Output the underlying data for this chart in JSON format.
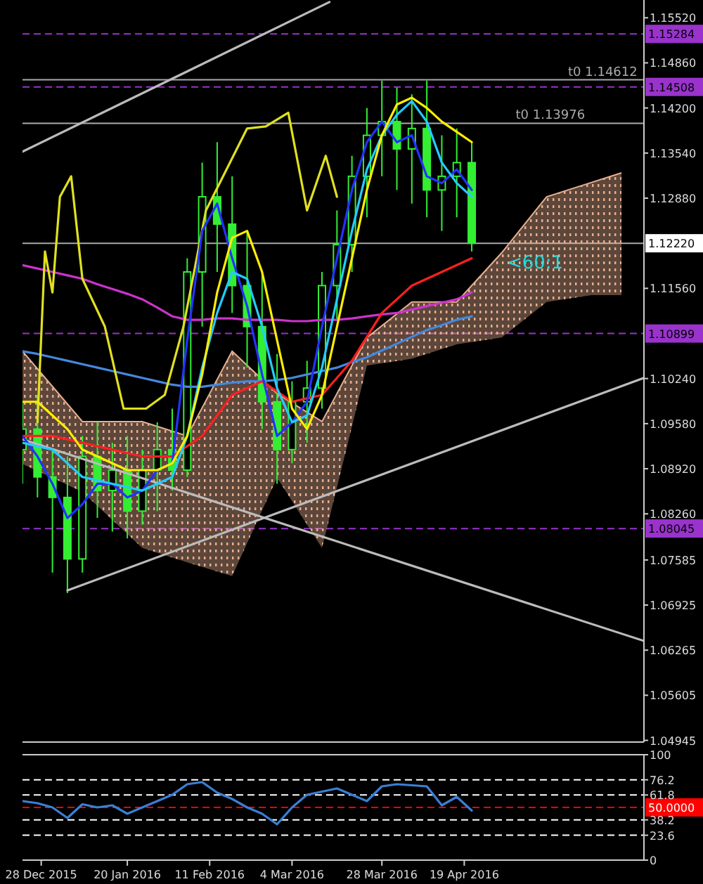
{
  "chart_data": [
    {
      "type": "candlestick",
      "tick_labels": "y",
      "xlim": [
        "2015-12-23",
        "2016-06-06"
      ],
      "ylim": [
        1.0492,
        1.1578
      ],
      "yticks": [
        {
          "value": 1.1552,
          "label": "1.15520"
        },
        {
          "value": 1.1486,
          "label": "1.14860"
        },
        {
          "value": 1.142,
          "label": "1.14200"
        },
        {
          "value": 1.1354,
          "label": "1.13540"
        },
        {
          "value": 1.1288,
          "label": "1.12880"
        },
        {
          "value": 1.1156,
          "label": "1.11560"
        },
        {
          "value": 1.1024,
          "label": "1.10240"
        },
        {
          "value": 1.0958,
          "label": "1.09580"
        },
        {
          "value": 1.0892,
          "label": "1.08920"
        },
        {
          "value": 1.0826,
          "label": "1.08260"
        },
        1.07585,
        1.06925,
        1.06265,
        1.05605,
        1.04945
      ],
      "x": [
        "2015-12-23",
        "2015-12-27",
        "2015-12-31",
        "2016-01-04",
        "2016-01-08",
        "2016-01-12",
        "2016-01-16",
        "2016-01-20",
        "2016-01-24",
        "2016-01-28",
        "2016-02-01",
        "2016-02-05",
        "2016-02-09",
        "2016-02-13",
        "2016-02-17",
        "2016-02-21",
        "2016-02-25",
        "2016-02-29",
        "2016-03-04",
        "2016-03-08",
        "2016-03-12",
        "2016-03-16",
        "2016-03-20",
        "2016-03-24",
        "2016-03-28",
        "2016-04-01",
        "2016-04-05",
        "2016-04-09",
        "2016-04-13",
        "2016-04-17",
        "2016-04-21"
      ],
      "color": "#33ee33",
      "ohlc": [
        [
          1.092,
          1.099,
          1.087,
          1.095
        ],
        [
          1.095,
          1.1,
          1.085,
          1.088
        ],
        [
          1.088,
          1.092,
          1.074,
          1.085
        ],
        [
          1.085,
          1.091,
          1.071,
          1.076
        ],
        [
          1.076,
          1.094,
          1.074,
          1.091
        ],
        [
          1.091,
          1.096,
          1.082,
          1.086
        ],
        [
          1.086,
          1.093,
          1.08,
          1.089
        ],
        [
          1.089,
          1.094,
          1.079,
          1.083
        ],
        [
          1.083,
          1.092,
          1.081,
          1.089
        ],
        [
          1.089,
          1.096,
          1.083,
          1.092
        ],
        [
          1.092,
          1.098,
          1.086,
          1.089
        ],
        [
          1.089,
          1.12,
          1.088,
          1.118
        ],
        [
          1.118,
          1.134,
          1.11,
          1.129
        ],
        [
          1.129,
          1.137,
          1.118,
          1.125
        ],
        [
          1.125,
          1.132,
          1.112,
          1.116
        ],
        [
          1.116,
          1.124,
          1.104,
          1.11
        ],
        [
          1.11,
          1.118,
          1.095,
          1.099
        ],
        [
          1.099,
          1.106,
          1.087,
          1.092
        ],
        [
          1.092,
          1.102,
          1.09,
          1.099
        ],
        [
          1.099,
          1.105,
          1.093,
          1.101
        ],
        [
          1.101,
          1.118,
          1.098,
          1.116
        ],
        [
          1.116,
          1.127,
          1.111,
          1.122
        ],
        [
          1.122,
          1.135,
          1.118,
          1.132
        ],
        [
          1.132,
          1.142,
          1.126,
          1.138
        ],
        [
          1.138,
          1.146,
          1.132,
          1.14
        ],
        [
          1.14,
          1.145,
          1.13,
          1.136
        ],
        [
          1.136,
          1.144,
          1.128,
          1.139
        ],
        [
          1.139,
          1.146,
          1.126,
          1.13
        ],
        [
          1.13,
          1.138,
          1.124,
          1.132
        ],
        [
          1.132,
          1.139,
          1.126,
          1.134
        ],
        [
          1.134,
          1.137,
          1.121,
          1.1222
        ]
      ],
      "series": [
        {
          "type": "line",
          "color": "#e8b090",
          "x": [
            "2015-12-23",
            "2016-01-08",
            "2016-01-24",
            "2016-02-05",
            "2016-02-17",
            "2016-02-29",
            "2016-03-12",
            "2016-03-24",
            "2016-04-05",
            "2016-04-17",
            "2016-04-29",
            "2016-05-11",
            "2016-05-23",
            "2016-05-31"
          ],
          "values": [
            1.1064,
            1.0961,
            1.0961,
            1.094,
            1.1064,
            1.1002,
            1.0961,
            1.1084,
            1.1136,
            1.1136,
            1.1208,
            1.129,
            1.1311,
            1.1325
          ],
          "upper": [
            1.1064,
            1.0961,
            1.0961,
            1.094,
            1.1064,
            1.1002,
            1.0961,
            1.1084,
            1.1136,
            1.1136,
            1.1208,
            1.129,
            1.1311,
            1.1325
          ],
          "lower": [
            1.0899,
            1.0858,
            1.0776,
            1.0755,
            1.0735,
            1.0879,
            1.0776,
            1.1043,
            1.1053,
            1.1074,
            1.1084,
            1.1136,
            1.1146,
            1.1146
          ]
        },
        {
          "type": "line",
          "color": "#bbbbbb",
          "x": [
            "2015-12-23",
            "2016-03-14"
          ],
          "values": [
            1.1356,
            1.1575
          ]
        },
        {
          "type": "line",
          "color": "#bbbbbb",
          "x": [
            "2015-12-23",
            "2016-06-06"
          ],
          "values": [
            1.0935,
            1.064
          ]
        },
        {
          "type": "line",
          "color": "#bbbbbb",
          "x": [
            "2016-01-04",
            "2016-06-06"
          ],
          "values": [
            1.0714,
            1.1025
          ]
        },
        {
          "type": "line",
          "color": "#cc33cc",
          "values": [
            1.119,
            1.1185,
            1.118,
            1.1175,
            1.117,
            1.1162,
            1.1155,
            1.1148,
            1.114,
            1.1128,
            1.1115,
            1.111,
            1.111,
            1.1112,
            1.1112,
            1.111,
            1.111,
            1.111,
            1.1108,
            1.1108,
            1.111,
            1.111,
            1.1112,
            1.1115,
            1.1118,
            1.112,
            1.1125,
            1.113,
            1.1135,
            1.114,
            1.115
          ]
        },
        {
          "type": "line",
          "color": "#4488dd",
          "values": [
            1.1064,
            1.106,
            1.1055,
            1.105,
            1.1045,
            1.104,
            1.1035,
            1.103,
            1.1025,
            1.102,
            1.1015,
            1.1012,
            1.1012,
            1.1015,
            1.1018,
            1.102,
            1.102,
            1.1022,
            1.1025,
            1.103,
            1.1035,
            1.104,
            1.1048,
            1.1055,
            1.1065,
            1.1075,
            1.1085,
            1.1095,
            1.1102,
            1.111,
            1.1115
          ]
        },
        {
          "type": "line",
          "color": "#e0e020",
          "x": [
            "2015-12-27",
            "2015-12-29",
            "2015-12-31",
            "2016-01-02",
            "2016-01-05",
            "2016-01-08",
            "2016-01-14",
            "2016-01-19",
            "2016-01-25",
            "2016-01-30",
            "2016-02-04",
            "2016-02-10",
            "2016-02-21",
            "2016-02-26",
            "2016-03-03",
            "2016-03-08",
            "2016-03-13",
            "2016-03-16"
          ],
          "values": [
            1.096,
            1.121,
            1.115,
            1.129,
            1.132,
            1.117,
            1.11,
            1.098,
            1.098,
            1.1,
            1.11,
            1.127,
            1.139,
            1.1393,
            1.1413,
            1.127,
            1.135,
            1.129
          ]
        },
        {
          "type": "line",
          "color": "#ff2020",
          "values": [
            1.094,
            1.094,
            1.094,
            1.0935,
            1.093,
            1.0925,
            1.092,
            1.0915,
            1.091,
            1.091,
            1.091,
            1.0925,
            1.094,
            1.097,
            1.1,
            1.101,
            1.102,
            1.1005,
            1.099,
            1.0995,
            1.1,
            1.1025,
            1.105,
            1.1085,
            1.112,
            1.114,
            1.116,
            1.117,
            1.118,
            1.119,
            1.12
          ]
        },
        {
          "type": "line",
          "color": "#2233ff",
          "values": [
            1.094,
            1.091,
            1.087,
            1.082,
            1.084,
            1.087,
            1.087,
            1.085,
            1.086,
            1.089,
            1.09,
            1.108,
            1.124,
            1.128,
            1.12,
            1.113,
            1.103,
            1.094,
            1.096,
            1.099,
            1.11,
            1.12,
            1.13,
            1.137,
            1.14,
            1.137,
            1.138,
            1.132,
            1.131,
            1.133,
            1.13
          ]
        },
        {
          "type": "line",
          "color": "#22ccff",
          "values": [
            1.093,
            1.0925,
            1.092,
            1.09,
            1.088,
            1.0875,
            1.087,
            1.0865,
            1.086,
            1.087,
            1.088,
            1.094,
            1.104,
            1.112,
            1.118,
            1.117,
            1.11,
            1.101,
            1.096,
            1.097,
            1.104,
            1.114,
            1.124,
            1.133,
            1.138,
            1.141,
            1.143,
            1.14,
            1.134,
            1.131,
            1.129
          ]
        },
        {
          "type": "line",
          "color": "#ffee00",
          "values": [
            1.099,
            1.099,
            1.097,
            1.095,
            1.092,
            1.091,
            1.09,
            1.089,
            1.089,
            1.089,
            1.09,
            1.094,
            1.103,
            1.115,
            1.123,
            1.124,
            1.118,
            1.108,
            1.098,
            1.095,
            1.1,
            1.11,
            1.12,
            1.13,
            1.138,
            1.1425,
            1.1435,
            1.142,
            1.14,
            1.1385,
            1.137
          ]
        }
      ],
      "ref_lines": [
        {
          "axis": "y",
          "value": 1.15284,
          "label": "1.15284",
          "color": "#9933cc",
          "line_style": "dashed"
        },
        {
          "axis": "y",
          "value": 1.14612,
          "color": "#aaaaaa",
          "line_style": "solid"
        },
        {
          "axis": "y",
          "value": 1.14508,
          "label": "1.14508",
          "color": "#9933cc",
          "line_style": "dashed"
        },
        {
          "axis": "y",
          "value": 1.13976,
          "color": "#aaaaaa",
          "line_style": "solid"
        },
        {
          "axis": "y",
          "value": 1.1222,
          "label": "1.12220",
          "color": "#aaaaaa",
          "line_style": "solid"
        },
        {
          "axis": "y",
          "value": 1.10899,
          "label": "1.10899",
          "color": "#9933cc",
          "line_style": "dashed"
        },
        {
          "axis": "y",
          "value": 1.08045,
          "label": "1.08045",
          "color": "#9933cc",
          "line_style": "dashed"
        }
      ],
      "annotations": [
        {
          "text": "t0 1.14612",
          "x": "2016-05-26",
          "y": 1.14612
        },
        {
          "text": "t0 1.13976",
          "x": "2016-05-12",
          "y": 1.13976
        },
        "<60:1"
      ]
    },
    {
      "type": "line",
      "xlim": [
        "2015-12-23",
        "2016-06-06"
      ],
      "ylim": [
        0,
        100
      ],
      "yticks": [
        100,
        76.2,
        61.8,
        38.2,
        23.6,
        0
      ],
      "xticks": [
        {
          "value": "2015-12-28",
          "label": "28 Dec 2015"
        },
        {
          "value": "2016-01-20",
          "label": "20 Jan 2016"
        },
        {
          "value": "2016-02-11",
          "label": "11 Feb 2016"
        },
        {
          "value": "2016-03-04",
          "label": "4 Mar 2016"
        },
        {
          "value": "2016-03-28",
          "label": "28 Mar 2016"
        },
        {
          "value": "2016-04-19",
          "label": "19 Apr 2016"
        }
      ],
      "x": [
        "2015-12-23",
        "2015-12-27",
        "2015-12-31",
        "2016-01-04",
        "2016-01-08",
        "2016-01-12",
        "2016-01-16",
        "2016-01-20",
        "2016-01-24",
        "2016-01-28",
        "2016-02-01",
        "2016-02-05",
        "2016-02-09",
        "2016-02-13",
        "2016-02-17",
        "2016-02-21",
        "2016-02-25",
        "2016-02-29",
        "2016-03-04",
        "2016-03-08",
        "2016-03-12",
        "2016-03-16",
        "2016-03-20",
        "2016-03-24",
        "2016-03-28",
        "2016-04-01",
        "2016-04-05",
        "2016-04-09",
        "2016-04-13",
        "2016-04-17",
        "2016-04-21"
      ],
      "series": [
        {
          "color": "#3a7fd5",
          "values": [
            56,
            54,
            50,
            40,
            53,
            50,
            52,
            44,
            50,
            56,
            62,
            72,
            74,
            64,
            58,
            50,
            44,
            34,
            50,
            62,
            65,
            68,
            62,
            56,
            70,
            72,
            71,
            70,
            52,
            60,
            47
          ]
        }
      ],
      "ref_lines": [
        {
          "axis": "y",
          "value": 76.2,
          "color": "#ffffff",
          "line_style": "dashed"
        },
        {
          "axis": "y",
          "value": 61.8,
          "color": "#ffffff",
          "line_style": "dashed"
        },
        {
          "axis": "y",
          "value": 50,
          "label": "50.0000",
          "color": "#ff0000",
          "line_style": "dashed"
        },
        {
          "axis": "y",
          "value": 38.2,
          "color": "#ffffff",
          "line_style": "dashed"
        },
        {
          "axis": "y",
          "value": 23.6,
          "color": "#ffffff",
          "line_style": "dashed"
        }
      ]
    }
  ]
}
